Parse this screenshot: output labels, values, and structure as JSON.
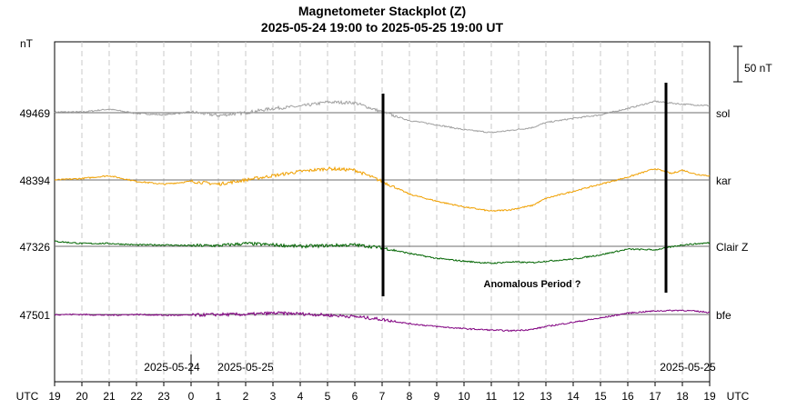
{
  "chart_data": {
    "type": "line",
    "title": "Magnetometer Stackplot (Z)",
    "subtitle": "2025-05-24 19:00 to 2025-05-25 19:00 UT",
    "y_unit": "nT",
    "x_axis_label": "UTC",
    "x_axis_label_right": "UTC",
    "x_range_hours": [
      0,
      24
    ],
    "x_tick_labels": [
      "19",
      "20",
      "21",
      "22",
      "23",
      "0",
      "1",
      "2",
      "3",
      "4",
      "5",
      "6",
      "7",
      "8",
      "9",
      "10",
      "11",
      "12",
      "13",
      "14",
      "15",
      "16",
      "17",
      "18",
      "19"
    ],
    "date_labels": [
      {
        "text": "2025-05-24",
        "at_hour": 4.3
      },
      {
        "text": "2025-05-25",
        "at_hour": 7.0
      },
      {
        "text": "2025-05-25",
        "at_hour": 23.2
      }
    ],
    "scale_bar": {
      "label": "50 nT",
      "value": 50
    },
    "grid": true,
    "vertical_markers_hours": [
      12.0,
      22.4
    ],
    "annotation": {
      "text": "Anomalous Period ?",
      "at_hour": 17.5
    },
    "series": [
      {
        "name": "sol",
        "baseline": "49469",
        "color": "#a0a0a0",
        "points": [
          [
            0,
            49470
          ],
          [
            1,
            49470
          ],
          [
            2,
            49474
          ],
          [
            3,
            49468
          ],
          [
            4,
            49466
          ],
          [
            5,
            49470
          ],
          [
            6,
            49465
          ],
          [
            7,
            49469
          ],
          [
            8,
            49475
          ],
          [
            9,
            49478
          ],
          [
            10,
            49484
          ],
          [
            11,
            49483
          ],
          [
            12,
            49470
          ],
          [
            13,
            49458
          ],
          [
            14,
            49452
          ],
          [
            15,
            49445
          ],
          [
            16,
            49441
          ],
          [
            16.7,
            49444
          ],
          [
            17.5,
            49448
          ],
          [
            18,
            49455
          ],
          [
            19,
            49461
          ],
          [
            20,
            49466
          ],
          [
            21,
            49475
          ],
          [
            22,
            49485
          ],
          [
            22.5,
            49483
          ],
          [
            23,
            49481
          ],
          [
            23.5,
            49480
          ],
          [
            24,
            49479
          ]
        ]
      },
      {
        "name": "kar",
        "baseline": "48394",
        "color": "#f0a000",
        "points": [
          [
            0,
            48394
          ],
          [
            1,
            48396
          ],
          [
            2,
            48400
          ],
          [
            3,
            48392
          ],
          [
            4,
            48388
          ],
          [
            5,
            48392
          ],
          [
            6,
            48388
          ],
          [
            7,
            48394
          ],
          [
            8,
            48400
          ],
          [
            9,
            48406
          ],
          [
            10,
            48410
          ],
          [
            11,
            48408
          ],
          [
            12,
            48392
          ],
          [
            13,
            48374
          ],
          [
            14,
            48364
          ],
          [
            15,
            48356
          ],
          [
            16,
            48350
          ],
          [
            16.7,
            48352
          ],
          [
            17.5,
            48358
          ],
          [
            18,
            48368
          ],
          [
            19,
            48378
          ],
          [
            20,
            48388
          ],
          [
            21,
            48398
          ],
          [
            22,
            48410
          ],
          [
            22.6,
            48403
          ],
          [
            23,
            48408
          ],
          [
            23.5,
            48402
          ],
          [
            24,
            48400
          ]
        ]
      },
      {
        "name": "Clair Z",
        "baseline": "47326",
        "color": "#006400",
        "points": [
          [
            0,
            47333
          ],
          [
            1,
            47330
          ],
          [
            2,
            47330
          ],
          [
            3,
            47328
          ],
          [
            4,
            47328
          ],
          [
            5,
            47327
          ],
          [
            6,
            47327
          ],
          [
            7,
            47330
          ],
          [
            8,
            47328
          ],
          [
            9,
            47326
          ],
          [
            10,
            47327
          ],
          [
            11,
            47328
          ],
          [
            12,
            47324
          ],
          [
            13,
            47316
          ],
          [
            14,
            47309
          ],
          [
            15,
            47305
          ],
          [
            16,
            47302
          ],
          [
            16.7,
            47304
          ],
          [
            17.5,
            47303
          ],
          [
            18,
            47305
          ],
          [
            19,
            47308
          ],
          [
            20,
            47314
          ],
          [
            21,
            47322
          ],
          [
            22,
            47321
          ],
          [
            23,
            47328
          ],
          [
            24,
            47331
          ]
        ]
      },
      {
        "name": "bfe",
        "baseline": "47501",
        "color": "#800080",
        "points": [
          [
            0,
            47501
          ],
          [
            1,
            47501
          ],
          [
            2,
            47500
          ],
          [
            3,
            47501
          ],
          [
            4,
            47500
          ],
          [
            5,
            47500
          ],
          [
            6,
            47501
          ],
          [
            7,
            47501
          ],
          [
            8,
            47503
          ],
          [
            9,
            47502
          ],
          [
            10,
            47500
          ],
          [
            11,
            47498
          ],
          [
            12,
            47494
          ],
          [
            13,
            47488
          ],
          [
            14,
            47484
          ],
          [
            15,
            47481
          ],
          [
            16,
            47479
          ],
          [
            16.7,
            47478
          ],
          [
            17.5,
            47480
          ],
          [
            18,
            47484
          ],
          [
            19,
            47490
          ],
          [
            20,
            47496
          ],
          [
            21,
            47503
          ],
          [
            22,
            47506
          ],
          [
            23,
            47507
          ],
          [
            24,
            47504
          ]
        ]
      }
    ]
  }
}
